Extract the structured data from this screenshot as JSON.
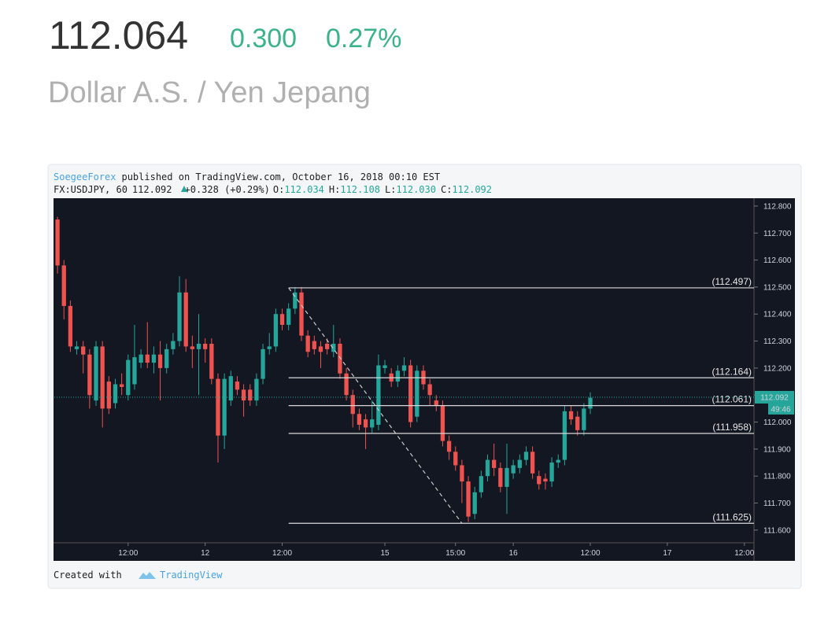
{
  "header": {
    "price": "112.064",
    "change": "0.300",
    "change_pct": "0.27%",
    "name": "Dollar A.S. / Yen Jepang"
  },
  "chart_data": {
    "type": "candlestick",
    "author": "SoegeeForex",
    "published": "published on TradingView.com, October 16, 2018 00:10 EST",
    "symbol": "FX:USDJPY, 60",
    "last": "112.092",
    "change": "+0.328 (+0.29%)",
    "ohlc_labels": [
      "O:",
      "H:",
      "L:",
      "C:"
    ],
    "ohlc_values": [
      "112.034",
      "112.108",
      "112.030",
      "112.092"
    ],
    "up_color": "#26a69a",
    "down_color": "#ef5350",
    "open": [
      112.75,
      112.58,
      112.43,
      112.27,
      112.28,
      112.25,
      112.08,
      112.28,
      112.15,
      112.07,
      112.14,
      112.1,
      112.14,
      112.22,
      112.25,
      112.22,
      112.25,
      112.2,
      112.27,
      112.3,
      112.48,
      112.28,
      112.27,
      112.29,
      112.29,
      112.16,
      111.95,
      112.08,
      112.15,
      112.12,
      112.12,
      112.08,
      112.16,
      112.27,
      112.28,
      112.4,
      112.36,
      112.42,
      112.48,
      112.32,
      112.3,
      112.28,
      112.29,
      112.26,
      112.29,
      112.18,
      112.1,
      112.03,
      112.01,
      111.98,
      111.99,
      112.2,
      112.18,
      112.15,
      112.19,
      112.21,
      112.02,
      112.19,
      112.14,
      112.08,
      112.06,
      111.93,
      111.89,
      111.84,
      111.78,
      111.66,
      111.74,
      111.8,
      111.86,
      111.83,
      111.76,
      111.81,
      111.83,
      111.86,
      111.89,
      111.8,
      111.79,
      111.78,
      111.85,
      111.86,
      112.04,
      112.02,
      111.97,
      112.05
    ],
    "high": [
      112.76,
      112.6,
      112.45,
      112.3,
      112.3,
      112.27,
      112.3,
      112.3,
      112.17,
      112.16,
      112.18,
      112.25,
      112.36,
      112.27,
      112.37,
      112.28,
      112.3,
      112.29,
      112.33,
      112.54,
      112.53,
      112.32,
      112.4,
      112.31,
      112.31,
      112.18,
      112.18,
      112.19,
      112.17,
      112.14,
      112.14,
      112.18,
      112.29,
      112.33,
      112.42,
      112.42,
      112.44,
      112.5,
      112.5,
      112.34,
      112.32,
      112.3,
      112.31,
      112.36,
      112.31,
      112.2,
      112.12,
      112.05,
      112.03,
      112.08,
      112.25,
      112.23,
      112.2,
      112.21,
      112.24,
      112.23,
      112.21,
      112.21,
      112.16,
      112.1,
      112.08,
      111.95,
      111.91,
      111.86,
      111.8,
      111.76,
      111.82,
      111.88,
      111.92,
      111.85,
      111.92,
      111.86,
      111.88,
      111.91,
      111.91,
      111.82,
      111.81,
      111.87,
      111.88,
      112.06,
      112.06,
      112.04,
      112.07,
      112.11
    ],
    "low": [
      112.55,
      112.38,
      112.26,
      112.25,
      112.18,
      112.05,
      112.06,
      111.98,
      112.03,
      112.05,
      112.1,
      112.08,
      112.12,
      112.2,
      112.2,
      112.18,
      112.08,
      112.18,
      112.25,
      112.28,
      112.26,
      112.2,
      112.1,
      112.22,
      112.14,
      111.85,
      111.9,
      112.06,
      112.1,
      112.02,
      112.06,
      112.06,
      112.14,
      112.25,
      112.26,
      112.34,
      112.34,
      112.4,
      112.3,
      112.24,
      112.25,
      112.2,
      112.25,
      112.24,
      112.16,
      112.08,
      111.98,
      111.97,
      111.9,
      111.96,
      111.97,
      112.18,
      112.13,
      112.13,
      112.17,
      111.98,
      112.0,
      112.12,
      112.06,
      112.04,
      111.91,
      111.86,
      111.82,
      111.7,
      111.63,
      111.64,
      111.72,
      111.78,
      111.8,
      111.74,
      111.66,
      111.79,
      111.81,
      111.84,
      111.79,
      111.75,
      111.75,
      111.76,
      111.83,
      111.84,
      111.99,
      111.95,
      111.95,
      112.03
    ],
    "close": [
      112.58,
      112.43,
      112.28,
      112.28,
      112.25,
      112.1,
      112.28,
      112.05,
      112.05,
      112.14,
      112.13,
      112.23,
      112.24,
      112.25,
      112.22,
      112.25,
      112.2,
      112.27,
      112.3,
      112.48,
      112.28,
      112.27,
      112.29,
      112.27,
      112.16,
      111.95,
      112.16,
      112.17,
      112.12,
      112.08,
      112.08,
      112.16,
      112.27,
      112.28,
      112.4,
      112.36,
      112.42,
      112.48,
      112.32,
      112.26,
      112.27,
      112.26,
      112.27,
      112.29,
      112.18,
      112.1,
      112.03,
      111.99,
      111.98,
      112.01,
      112.21,
      112.21,
      112.15,
      112.19,
      112.21,
      112.0,
      112.19,
      112.14,
      112.1,
      112.06,
      111.93,
      111.89,
      111.84,
      111.78,
      111.65,
      111.74,
      111.8,
      111.86,
      111.83,
      111.76,
      111.83,
      111.84,
      111.86,
      111.89,
      111.81,
      111.77,
      111.78,
      111.85,
      111.86,
      112.04,
      112.01,
      111.97,
      112.05,
      112.09
    ],
    "xlim": [
      -0.5,
      108.5
    ],
    "xticks": [
      {
        "value": 11,
        "label": "12:00"
      },
      {
        "value": 23,
        "label": "12"
      },
      {
        "value": 35,
        "label": "12:00"
      },
      {
        "value": 51,
        "label": "15"
      },
      {
        "value": 62,
        "label": "15:00"
      },
      {
        "value": 71,
        "label": "16"
      },
      {
        "value": 83,
        "label": "12:00"
      },
      {
        "value": 95,
        "label": "17"
      },
      {
        "value": 107,
        "label": "12:00"
      }
    ],
    "ylim": [
      111.553,
      112.826
    ],
    "yticks": [
      {
        "value": 112.8,
        "label": "112.800"
      },
      {
        "value": 112.7,
        "label": "112.700"
      },
      {
        "value": 112.6,
        "label": "112.600"
      },
      {
        "value": 112.5,
        "label": "112.500"
      },
      {
        "value": 112.4,
        "label": "112.400"
      },
      {
        "value": 112.3,
        "label": "112.300"
      },
      {
        "value": 112.2,
        "label": "112.200"
      },
      {
        "value": 112.1,
        "label": "112.100"
      },
      {
        "value": 112.0,
        "label": "112.000"
      },
      {
        "value": 111.9,
        "label": "111.900"
      },
      {
        "value": 111.8,
        "label": "111.800"
      },
      {
        "value": 111.7,
        "label": "111.700"
      },
      {
        "value": 111.6,
        "label": "111.600"
      }
    ],
    "levels": [
      {
        "value": 112.497,
        "label": "(112.497)"
      },
      {
        "value": 112.164,
        "label": "(112.164)"
      },
      {
        "value": 112.061,
        "label": "(112.061)"
      },
      {
        "value": 111.958,
        "label": "(111.958)"
      },
      {
        "value": 111.625,
        "label": "(111.625)"
      }
    ],
    "trend_line": {
      "x": [
        36,
        63
      ],
      "y": [
        112.497,
        111.625
      ]
    },
    "last_price": {
      "value": 112.092,
      "label": "112.092"
    },
    "countdown": "49:46",
    "footer": "Created with",
    "brand": "TradingView"
  }
}
